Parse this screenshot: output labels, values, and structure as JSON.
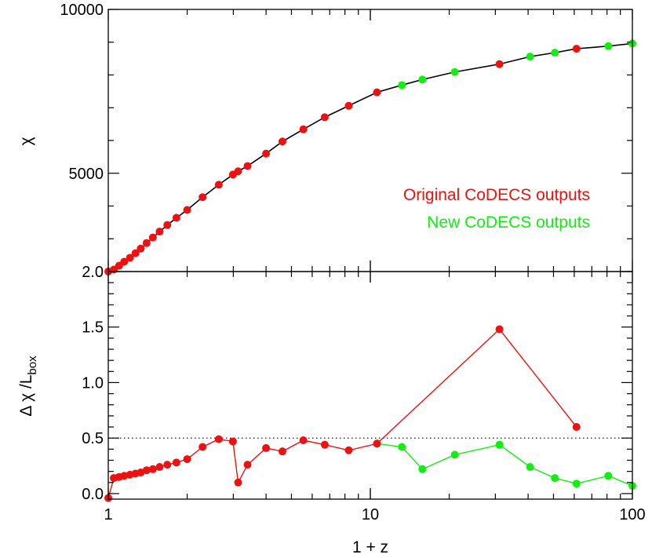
{
  "chart_data": [
    {
      "id": "top",
      "type": "scatter",
      "ylabel": "χ",
      "x_scale": "log",
      "xlim": [
        1,
        100
      ],
      "ylim": [
        2000,
        10000
      ],
      "y_ticks": [
        {
          "value": 5000,
          "label": "5000"
        },
        {
          "value": 10000,
          "label": "10000"
        }
      ],
      "line_color": "#000000",
      "legend_position": "right",
      "series": [
        {
          "name": "Original CoDECS outputs",
          "color": "#ee1111",
          "x": [
            1.0,
            1.05,
            1.1,
            1.15,
            1.21,
            1.27,
            1.33,
            1.4,
            1.48,
            1.57,
            1.68,
            1.82,
            2.0,
            2.29,
            2.64,
            2.99,
            3.13,
            3.4,
            4.0,
            4.62,
            5.55,
            6.7,
            8.27,
            10.6,
            31.1,
            61.2
          ],
          "y": [
            2000,
            2060,
            2180,
            2300,
            2420,
            2560,
            2700,
            2870,
            3040,
            3220,
            3420,
            3640,
            3880,
            4270,
            4650,
            4960,
            5060,
            5220,
            5600,
            5970,
            6340,
            6710,
            7060,
            7470,
            8330,
            8800
          ]
        },
        {
          "name": "New CoDECS outputs",
          "color": "#11ee11",
          "x": [
            13.2,
            15.8,
            21.0,
            40.7,
            50.6,
            80.9,
            100
          ],
          "y": [
            7690,
            7860,
            8090,
            8560,
            8680,
            8880,
            8960
          ]
        }
      ]
    },
    {
      "id": "bottom",
      "type": "line",
      "xlabel": "1 + z",
      "ylabel": "Δ χ /L",
      "ylabel_sub": "box",
      "x_scale": "log",
      "xlim": [
        1,
        100
      ],
      "ylim": [
        -0.05,
        2.0
      ],
      "x_ticks": [
        {
          "value": 1,
          "label": "1"
        },
        {
          "value": 10,
          "label": "10"
        },
        {
          "value": 100,
          "label": "100"
        }
      ],
      "y_ticks": [
        {
          "value": 0.0,
          "label": "0.0"
        },
        {
          "value": 0.5,
          "label": "0.5"
        },
        {
          "value": 1.0,
          "label": "1.0"
        },
        {
          "value": 1.5,
          "label": "1.5"
        },
        {
          "value": 2.0,
          "label": "2.0"
        }
      ],
      "reference_line": {
        "y": 0.5,
        "style": "dotted"
      },
      "series": [
        {
          "name": "Original CoDECS outputs",
          "color": "#ee1111",
          "x": [
            1.0,
            1.05,
            1.1,
            1.15,
            1.21,
            1.27,
            1.33,
            1.4,
            1.48,
            1.57,
            1.68,
            1.82,
            2.0,
            2.29,
            2.64,
            2.99,
            3.13,
            3.4,
            4.0,
            4.62,
            5.55,
            6.7,
            8.27,
            10.6,
            31.1,
            61.2
          ],
          "y": [
            -0.04,
            0.14,
            0.15,
            0.16,
            0.17,
            0.18,
            0.19,
            0.21,
            0.22,
            0.24,
            0.26,
            0.28,
            0.31,
            0.42,
            0.49,
            0.47,
            0.1,
            0.26,
            0.41,
            0.38,
            0.48,
            0.44,
            0.39,
            0.45,
            1.48,
            0.6
          ]
        },
        {
          "name": "New CoDECS outputs",
          "color": "#11ee11",
          "x": [
            10.6,
            13.2,
            15.8,
            21.0,
            31.1,
            40.7,
            50.6,
            61.2,
            80.9,
            100
          ],
          "y": [
            0.45,
            0.42,
            0.22,
            0.35,
            0.44,
            0.24,
            0.14,
            0.09,
            0.16,
            0.07
          ]
        }
      ]
    }
  ]
}
